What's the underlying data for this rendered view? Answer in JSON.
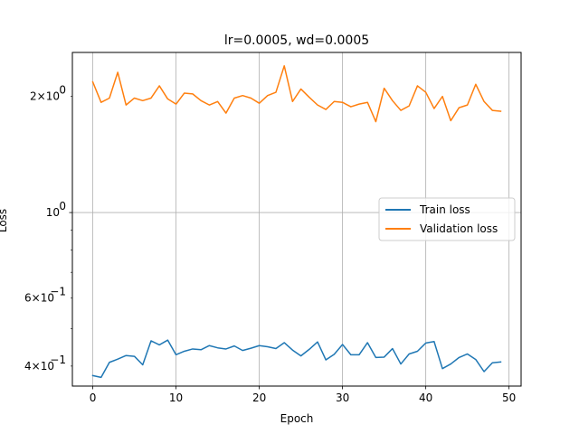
{
  "chart_data": {
    "type": "line",
    "title": "lr=0.0005, wd=0.0005",
    "xlabel": "Epoch",
    "ylabel": "Loss",
    "yscale": "log",
    "xlim": [
      -2.45,
      51.45
    ],
    "ylim": [
      0.355,
      2.6
    ],
    "grid": true,
    "legend_position": "center-right",
    "x_ticks": [
      {
        "value": 0,
        "label": "0"
      },
      {
        "value": 10,
        "label": "10"
      },
      {
        "value": 20,
        "label": "20"
      },
      {
        "value": 30,
        "label": "30"
      },
      {
        "value": 40,
        "label": "40"
      },
      {
        "value": 50,
        "label": "50"
      }
    ],
    "y_ticks_major": [
      {
        "value": 1.0,
        "label": "10⁰",
        "base": "10",
        "exp": "0"
      }
    ],
    "y_ticks_minor_labeled": [
      {
        "value": 2.0,
        "label": "2×10⁰",
        "mant": "2",
        "exp": "0"
      },
      {
        "value": 0.6,
        "label": "6×10⁻¹",
        "mant": "6",
        "exp": "−1"
      },
      {
        "value": 0.4,
        "label": "4×10⁻¹",
        "mant": "4",
        "exp": "−1"
      }
    ],
    "y_ticks_minor": [
      0.5,
      0.7,
      0.8,
      0.9
    ],
    "x": [
      0,
      1,
      2,
      3,
      4,
      5,
      6,
      7,
      8,
      9,
      10,
      11,
      12,
      13,
      14,
      15,
      16,
      17,
      18,
      19,
      20,
      21,
      22,
      23,
      24,
      25,
      26,
      27,
      28,
      29,
      30,
      31,
      32,
      33,
      34,
      35,
      36,
      37,
      38,
      39,
      40,
      41,
      42,
      43,
      44,
      45,
      46,
      47,
      48,
      49
    ],
    "series": [
      {
        "name": "Train loss",
        "color": "#1f77b4",
        "values": [
          0.378,
          0.374,
          0.409,
          0.417,
          0.426,
          0.424,
          0.403,
          0.465,
          0.454,
          0.467,
          0.428,
          0.437,
          0.443,
          0.441,
          0.452,
          0.446,
          0.443,
          0.451,
          0.439,
          0.445,
          0.452,
          0.449,
          0.444,
          0.46,
          0.44,
          0.425,
          0.442,
          0.462,
          0.415,
          0.429,
          0.455,
          0.428,
          0.428,
          0.46,
          0.421,
          0.422,
          0.444,
          0.405,
          0.43,
          0.437,
          0.459,
          0.463,
          0.394,
          0.405,
          0.421,
          0.43,
          0.416,
          0.387,
          0.408,
          0.41
        ]
      },
      {
        "name": "Validation loss",
        "color": "#ff7f0e",
        "values": [
          2.18,
          1.93,
          1.98,
          2.31,
          1.9,
          1.98,
          1.95,
          1.98,
          2.13,
          1.97,
          1.91,
          2.04,
          2.03,
          1.95,
          1.9,
          1.94,
          1.81,
          1.98,
          2.01,
          1.98,
          1.92,
          2.01,
          2.05,
          2.4,
          1.94,
          2.09,
          1.99,
          1.9,
          1.85,
          1.94,
          1.93,
          1.88,
          1.91,
          1.93,
          1.72,
          2.1,
          1.95,
          1.84,
          1.89,
          2.13,
          2.05,
          1.86,
          2.0,
          1.73,
          1.87,
          1.9,
          2.15,
          1.94,
          1.84,
          1.83
        ]
      }
    ]
  }
}
